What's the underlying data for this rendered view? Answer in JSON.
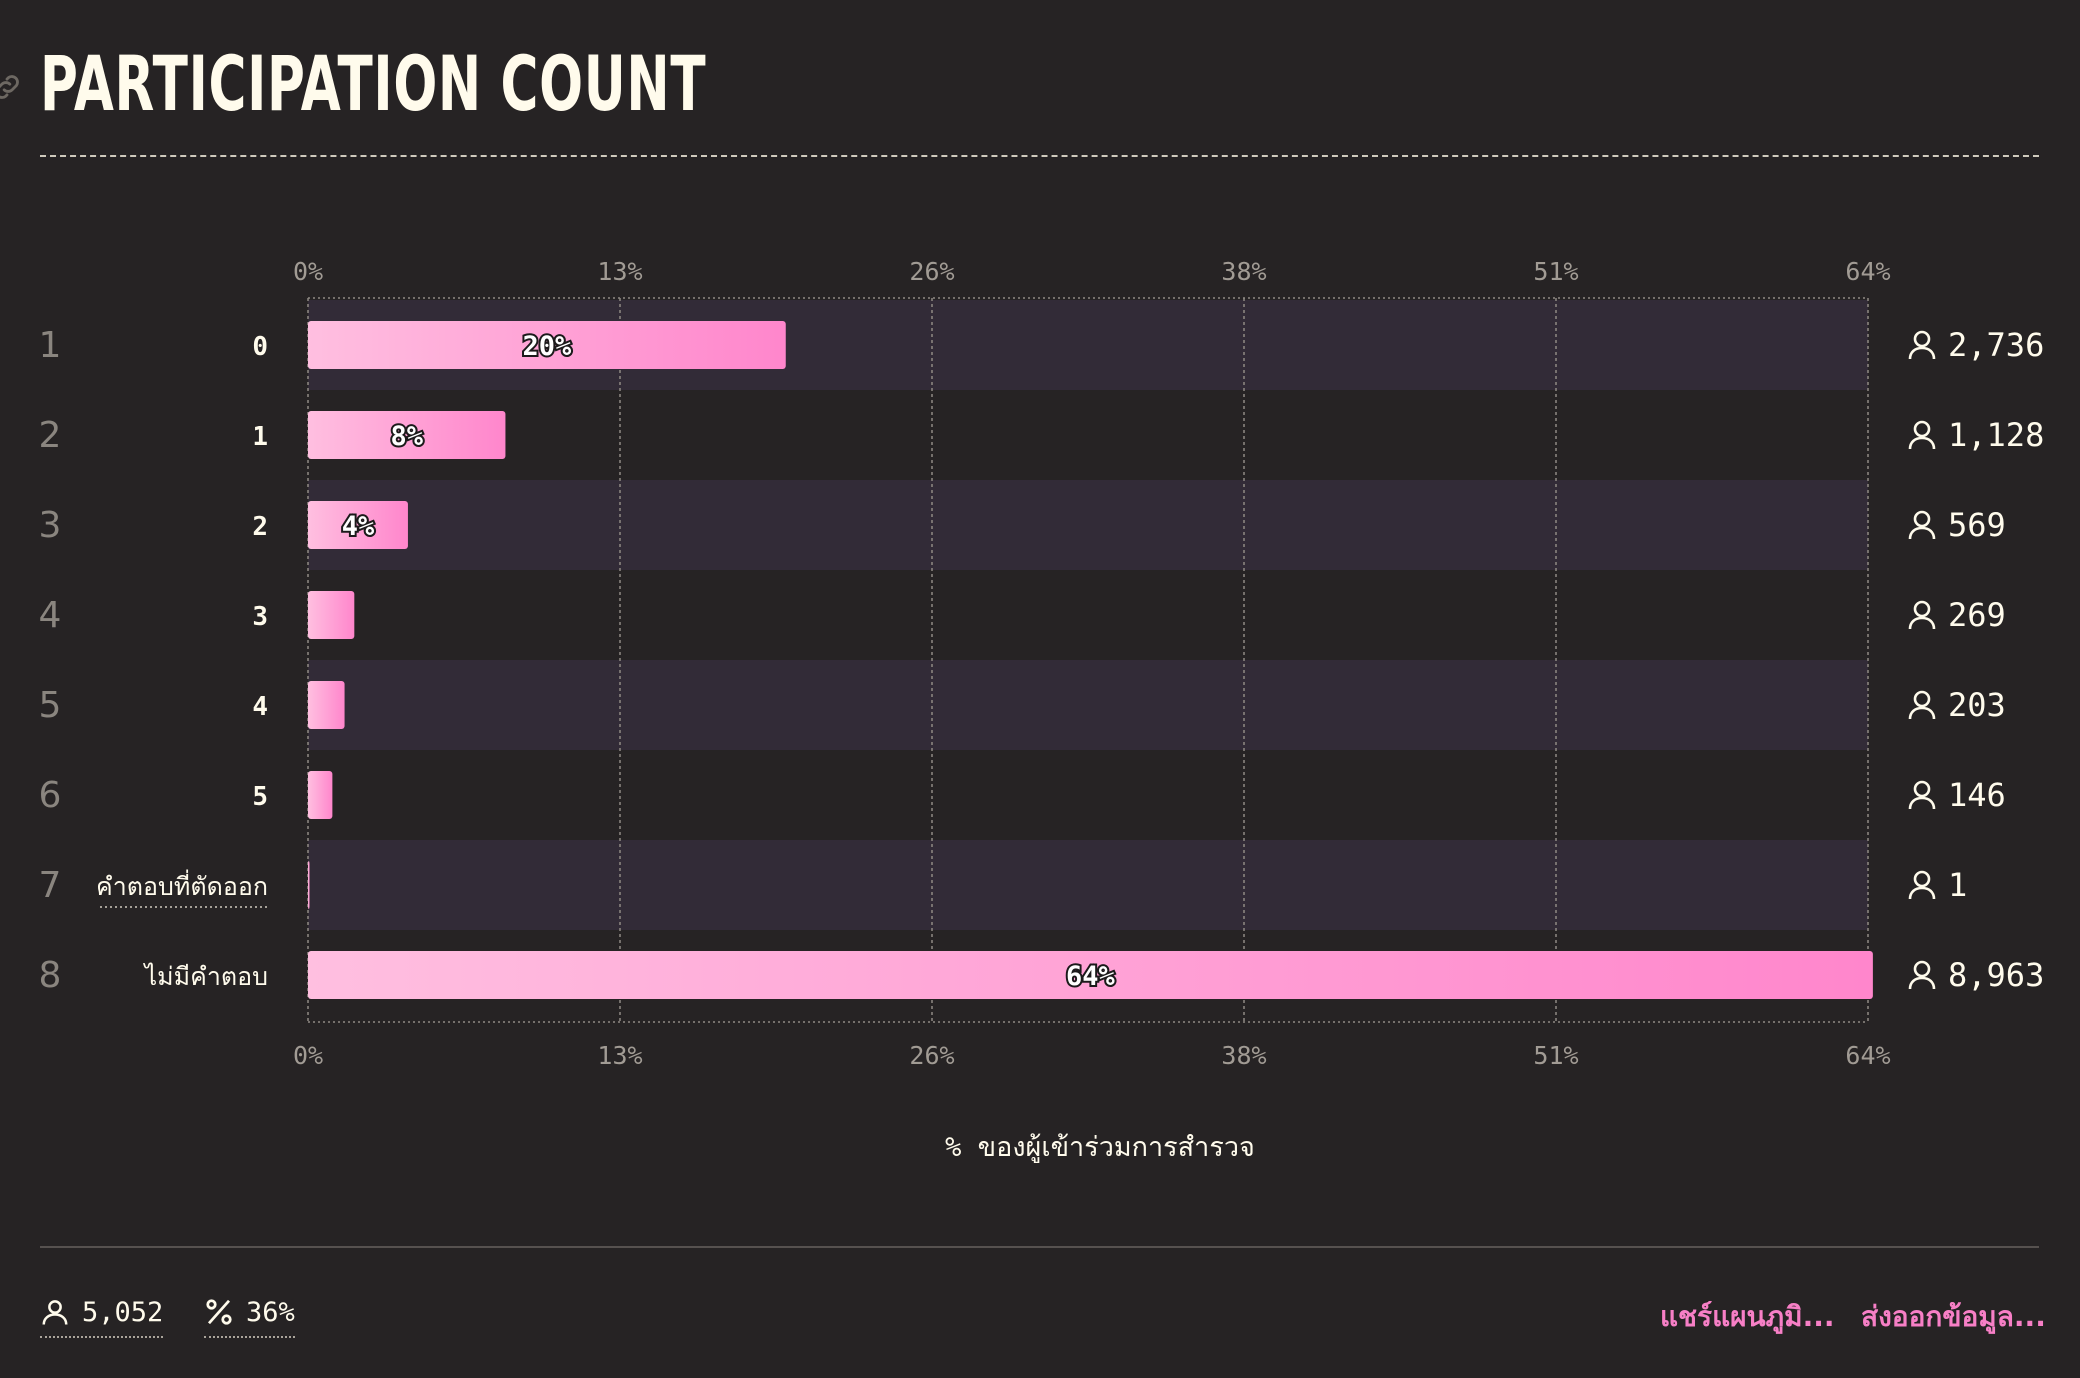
{
  "header": {
    "title": "PARTICIPATION COUNT"
  },
  "chart_data": {
    "type": "bar",
    "orientation": "horizontal",
    "xlim": [
      0,
      64
    ],
    "x_ticks": [
      "0%",
      "13%",
      "26%",
      "38%",
      "51%",
      "64%"
    ],
    "xlabel": "% ของผู้เข้าร่วมการสำรวจ",
    "categories": [
      "0",
      "1",
      "2",
      "3",
      "4",
      "5",
      "คำตอบที่ตัดออก",
      "ไม่มีคำตอบ"
    ],
    "ranks": [
      "1",
      "2",
      "3",
      "4",
      "5",
      "6",
      "7",
      "8"
    ],
    "values": [
      19.6,
      8.1,
      4.1,
      1.9,
      1.5,
      1.0,
      0.01,
      64.2
    ],
    "value_labels": [
      "20%",
      "8%",
      "4%",
      "",
      "",
      "",
      "",
      "64%"
    ],
    "counts": [
      "2,736",
      "1,128",
      "569",
      "269",
      "203",
      "146",
      "1",
      "8,963"
    ],
    "grid": true,
    "colors": {
      "bar_start": "#ffbfe0",
      "bar_end": "#ff86cc",
      "band": "#322b37"
    }
  },
  "footer": {
    "respondents": "5,052",
    "percent": "36%",
    "share_label": "แชร์แผนภูมิ...",
    "export_label": "ส่งออกข้อมูล..."
  }
}
